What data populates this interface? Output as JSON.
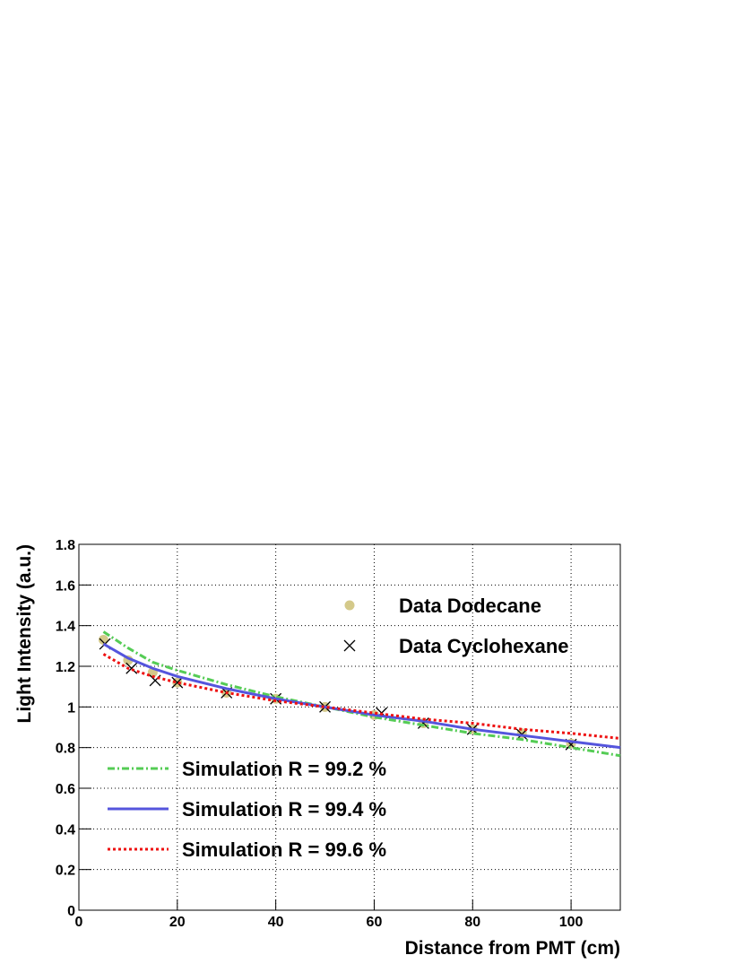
{
  "chart_data": {
    "type": "line",
    "xlabel": "Distance from PMT (cm)",
    "ylabel": "Light Intensity (a.u.)",
    "xlim": [
      0,
      110
    ],
    "xticks": [
      0,
      20,
      40,
      60,
      80,
      100
    ],
    "ylim": [
      0,
      1.8
    ],
    "yticks": [
      0,
      0.2,
      0.4,
      0.6,
      0.8,
      1,
      1.2,
      1.4,
      1.6,
      1.8
    ],
    "grid": true,
    "series": [
      {
        "name": "Data Dodecane",
        "color": "#d4c98a",
        "marker": "circle",
        "x": [
          5,
          10,
          15,
          20,
          30,
          40,
          50,
          60,
          70,
          80,
          90,
          100
        ],
        "values": [
          1.33,
          1.23,
          1.17,
          1.12,
          1.07,
          1.04,
          1.0,
          0.96,
          0.92,
          0.89,
          0.87,
          0.82
        ]
      },
      {
        "name": "Data Cyclohexane",
        "color": "#000000",
        "marker": "x",
        "x": [
          5.3,
          10.7,
          15.5,
          20,
          30,
          40,
          50,
          61.5,
          70,
          80,
          90,
          100
        ],
        "values": [
          1.31,
          1.19,
          1.13,
          1.12,
          1.07,
          1.04,
          1.0,
          0.97,
          0.92,
          0.89,
          0.865,
          0.815
        ]
      },
      {
        "name": "Simulation R = 99.2 %",
        "color": "#55cc55",
        "dash": "dashdot",
        "x": [
          5,
          10,
          15,
          20,
          30,
          40,
          50,
          60,
          70,
          80,
          90,
          100,
          110
        ],
        "values": [
          1.37,
          1.29,
          1.22,
          1.18,
          1.11,
          1.05,
          1.0,
          0.95,
          0.91,
          0.87,
          0.84,
          0.8,
          0.76
        ]
      },
      {
        "name": "Simulation R = 99.4 %",
        "color": "#5555dd",
        "dash": "solid",
        "x": [
          5,
          10,
          15,
          20,
          30,
          40,
          50,
          60,
          70,
          80,
          90,
          100,
          110
        ],
        "values": [
          1.31,
          1.24,
          1.19,
          1.15,
          1.09,
          1.04,
          1.0,
          0.96,
          0.93,
          0.89,
          0.86,
          0.83,
          0.8
        ]
      },
      {
        "name": "Simulation R = 99.6 %",
        "color": "#ee1111",
        "dash": "dotted",
        "x": [
          5,
          10,
          15,
          20,
          30,
          40,
          50,
          60,
          70,
          80,
          90,
          100,
          110
        ],
        "values": [
          1.26,
          1.19,
          1.15,
          1.12,
          1.07,
          1.03,
          1.0,
          0.97,
          0.94,
          0.92,
          0.89,
          0.87,
          0.845
        ]
      }
    ]
  }
}
